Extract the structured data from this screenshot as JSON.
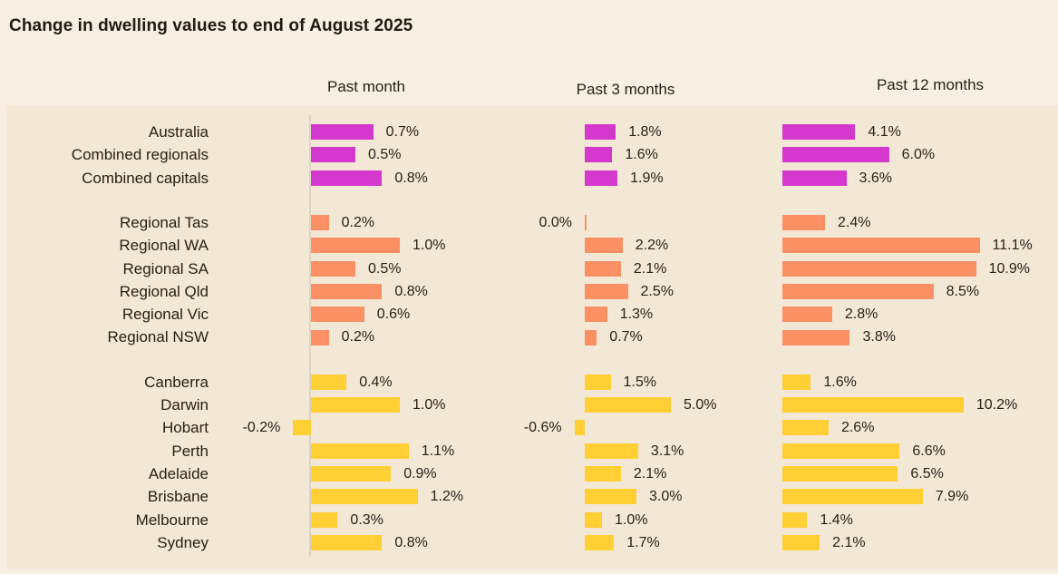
{
  "title": "Change in dwelling values to end of August 2025",
  "chart_data": {
    "type": "bar",
    "orientation": "horizontal",
    "unit": "%",
    "value_label_format": "one_decimal_percent",
    "legend": "none",
    "grid": "off",
    "columns": [
      {
        "label": "Past month"
      },
      {
        "label": "Past 3 months"
      },
      {
        "label": "Past 12 months"
      }
    ],
    "groups": [
      {
        "name": "national",
        "color": "#d538cd",
        "rows": [
          {
            "label": "Australia",
            "values": [
              0.7,
              1.8,
              4.1
            ]
          },
          {
            "label": "Combined regionals",
            "values": [
              0.5,
              1.6,
              6.0
            ]
          },
          {
            "label": "Combined capitals",
            "values": [
              0.8,
              1.9,
              3.6
            ]
          }
        ]
      },
      {
        "name": "regional",
        "color": "#fb9065",
        "rows": [
          {
            "label": "Regional Tas",
            "values": [
              0.2,
              0.0,
              2.4
            ]
          },
          {
            "label": "Regional WA",
            "values": [
              1.0,
              2.2,
              11.1
            ]
          },
          {
            "label": "Regional SA",
            "values": [
              0.5,
              2.1,
              10.9
            ]
          },
          {
            "label": "Regional Qld",
            "values": [
              0.8,
              2.5,
              8.5
            ]
          },
          {
            "label": "Regional Vic",
            "values": [
              0.6,
              1.3,
              2.8
            ]
          },
          {
            "label": "Regional NSW",
            "values": [
              0.2,
              0.7,
              3.8
            ]
          }
        ]
      },
      {
        "name": "capitals",
        "color": "#ffcf33",
        "rows": [
          {
            "label": "Canberra",
            "values": [
              0.4,
              1.5,
              1.6
            ]
          },
          {
            "label": "Darwin",
            "values": [
              1.0,
              5.0,
              10.2
            ]
          },
          {
            "label": "Hobart",
            "values": [
              -0.2,
              -0.6,
              2.6
            ]
          },
          {
            "label": "Perth",
            "values": [
              1.1,
              3.1,
              6.6
            ]
          },
          {
            "label": "Adelaide",
            "values": [
              0.9,
              2.1,
              6.5
            ]
          },
          {
            "label": "Brisbane",
            "values": [
              1.2,
              3.0,
              7.9
            ]
          },
          {
            "label": "Melbourne",
            "values": [
              0.3,
              1.0,
              1.4
            ]
          },
          {
            "label": "Sydney",
            "values": [
              0.8,
              1.7,
              2.1
            ]
          }
        ]
      }
    ],
    "colors": {
      "background": "#f8efe3",
      "panel": "#f3e7d6",
      "text": "#2a2014",
      "baseline": "#ddd4c5"
    }
  }
}
